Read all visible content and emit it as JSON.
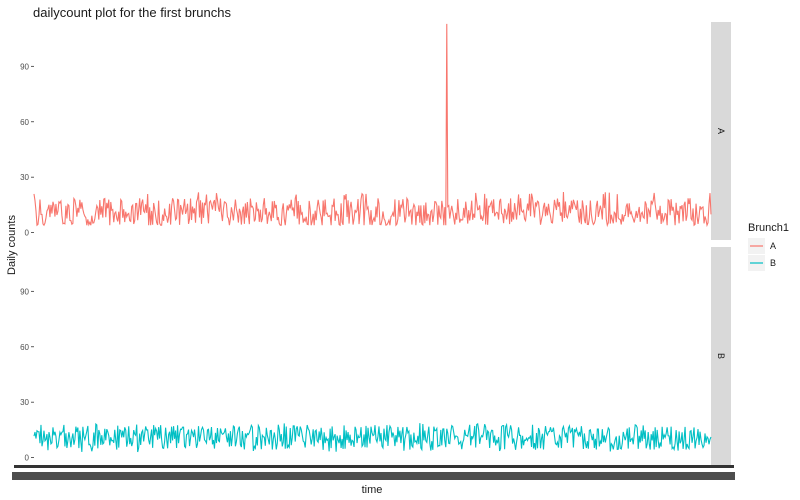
{
  "chart_data": {
    "type": "line",
    "title": "dailycount plot for the first brunchs",
    "xlabel": "time",
    "ylabel": "Daily counts",
    "ylim": [
      -4,
      114
    ],
    "yticks": [
      0,
      30,
      60,
      90
    ],
    "facet_by": "Brunch1",
    "panels": [
      "A",
      "B"
    ],
    "legend": {
      "title": "Brunch1",
      "position": "right"
    },
    "grid": false,
    "series": [
      {
        "name": "A",
        "color": "#F8766D",
        "n_points": 680,
        "baseline_mean": 11,
        "typical_range": [
          4,
          22
        ],
        "peaks": [
          {
            "index_fraction": 0.61,
            "value": 113
          }
        ]
      },
      {
        "name": "B",
        "color": "#00BFC4",
        "n_points": 680,
        "baseline_mean": 11,
        "typical_range": [
          3,
          19
        ],
        "peaks": []
      }
    ]
  }
}
